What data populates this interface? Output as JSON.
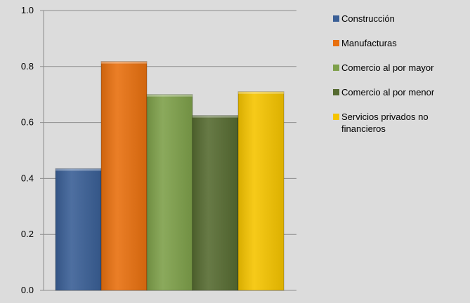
{
  "chart_data": {
    "type": "bar",
    "categories": [
      "Construcción",
      "Manufacturas",
      "Comercio al por mayor",
      "Comercio al por menor",
      "Servicios privados no financieros"
    ],
    "values": [
      0.435,
      0.818,
      0.7,
      0.625,
      0.71
    ],
    "colors": [
      "#3a5f96",
      "#e8700f",
      "#7ea04a",
      "#566b31",
      "#f5c400"
    ],
    "ylim": [
      0,
      1.0
    ],
    "yticks": [
      "0.0",
      "0.2",
      "0.4",
      "0.6",
      "0.8",
      "1.0"
    ],
    "grid": true,
    "legend_position": "right",
    "title": "",
    "xlabel": "",
    "ylabel": ""
  }
}
